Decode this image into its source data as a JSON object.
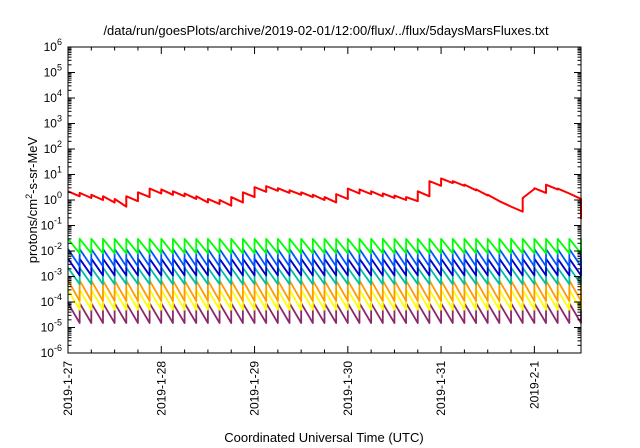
{
  "chart_data": {
    "type": "line",
    "title": "/data/run/goesPlots/archive/2019-02-01/12:00/flux/../flux/5daysMarsFluxes.txt",
    "xlabel": "Coordinated Universal Time (UTC)",
    "ylabel": {
      "prefix": "protons/cm",
      "exponent": "2",
      "suffix": "-s-sr-MeV"
    },
    "y_scale": "log",
    "ylim_exponent": [
      -6,
      6
    ],
    "y_tick_exponents": [
      "-6",
      "-5",
      "-4",
      "-3",
      "-2",
      "-1",
      "0",
      "1",
      "2",
      "3",
      "4",
      "5",
      "6"
    ],
    "y_tick_base": "10",
    "xlim_days": [
      "2019-01-27",
      "2019-02-01 12:00"
    ],
    "x_ticks": [
      "2019-1-27",
      "2019-1-28",
      "2019-1-29",
      "2019-1-30",
      "2019-1-31",
      "2019-2-1"
    ],
    "grid": false,
    "legend": "none",
    "sawtooth_period_hours": 3,
    "series": [
      {
        "color": "#ff0000",
        "points": [
          [
            "2019-01-27 00:00",
            2.2
          ],
          [
            "2019-01-27 03:00",
            1.4
          ],
          [
            "2019-01-27 03:00",
            1.9
          ],
          [
            "2019-01-27 06:00",
            1.2
          ],
          [
            "2019-01-27 06:00",
            1.6
          ],
          [
            "2019-01-27 09:00",
            1.0
          ],
          [
            "2019-01-27 09:00",
            1.4
          ],
          [
            "2019-01-27 12:00",
            0.8
          ],
          [
            "2019-01-27 12:00",
            1.1
          ],
          [
            "2019-01-27 15:00",
            0.55
          ],
          [
            "2019-01-27 15:00",
            1.4
          ],
          [
            "2019-01-27 18:00",
            0.9
          ],
          [
            "2019-01-27 18:00",
            2.0
          ],
          [
            "2019-01-27 21:00",
            1.3
          ],
          [
            "2019-01-27 21:00",
            2.8
          ],
          [
            "2019-01-28 00:00",
            1.8
          ],
          [
            "2019-01-28 00:00",
            2.6
          ],
          [
            "2019-01-28 03:00",
            1.6
          ],
          [
            "2019-01-28 03:00",
            2.2
          ],
          [
            "2019-01-28 06:00",
            1.4
          ],
          [
            "2019-01-28 06:00",
            1.8
          ],
          [
            "2019-01-28 09:00",
            1.1
          ],
          [
            "2019-01-28 09:00",
            1.4
          ],
          [
            "2019-01-28 12:00",
            0.8
          ],
          [
            "2019-01-28 12:00",
            1.1
          ],
          [
            "2019-01-28 15:00",
            0.7
          ],
          [
            "2019-01-28 15:00",
            1.0
          ],
          [
            "2019-01-28 18:00",
            0.6
          ],
          [
            "2019-01-28 18:00",
            1.3
          ],
          [
            "2019-01-28 21:00",
            0.8
          ],
          [
            "2019-01-28 21:00",
            2.0
          ],
          [
            "2019-01-29 00:00",
            1.3
          ],
          [
            "2019-01-29 00:00",
            3.2
          ],
          [
            "2019-01-29 03:00",
            2.1
          ],
          [
            "2019-01-29 03:00",
            3.5
          ],
          [
            "2019-01-29 06:00",
            2.3
          ],
          [
            "2019-01-29 06:00",
            2.9
          ],
          [
            "2019-01-29 09:00",
            1.9
          ],
          [
            "2019-01-29 09:00",
            2.4
          ],
          [
            "2019-01-29 12:00",
            1.6
          ],
          [
            "2019-01-29 12:00",
            2.0
          ],
          [
            "2019-01-29 15:00",
            1.3
          ],
          [
            "2019-01-29 15:00",
            1.6
          ],
          [
            "2019-01-29 18:00",
            1.0
          ],
          [
            "2019-01-29 18:00",
            1.3
          ],
          [
            "2019-01-29 21:00",
            0.8
          ],
          [
            "2019-01-29 21:00",
            1.7
          ],
          [
            "2019-01-30 00:00",
            1.1
          ],
          [
            "2019-01-30 00:00",
            2.8
          ],
          [
            "2019-01-30 03:00",
            1.8
          ],
          [
            "2019-01-30 03:00",
            2.6
          ],
          [
            "2019-01-30 06:00",
            1.7
          ],
          [
            "2019-01-30 06:00",
            2.2
          ],
          [
            "2019-01-30 09:00",
            1.4
          ],
          [
            "2019-01-30 09:00",
            1.8
          ],
          [
            "2019-01-30 12:00",
            1.2
          ],
          [
            "2019-01-30 12:00",
            1.5
          ],
          [
            "2019-01-30 15:00",
            1.0
          ],
          [
            "2019-01-30 15:00",
            1.3
          ],
          [
            "2019-01-30 18:00",
            0.9
          ],
          [
            "2019-01-30 18:00",
            2.2
          ],
          [
            "2019-01-30 21:00",
            1.4
          ],
          [
            "2019-01-30 21:00",
            5.5
          ],
          [
            "2019-01-31 00:00",
            3.6
          ],
          [
            "2019-01-31 00:00",
            7.0
          ],
          [
            "2019-01-31 03:00",
            4.6
          ],
          [
            "2019-01-31 03:00",
            5.5
          ],
          [
            "2019-01-31 06:00",
            3.6
          ],
          [
            "2019-01-31 06:00",
            4.0
          ],
          [
            "2019-01-31 09:00",
            2.4
          ],
          [
            "2019-01-31 09:00",
            2.6
          ],
          [
            "2019-01-31 12:00",
            1.5
          ],
          [
            "2019-01-31 12:00",
            1.6
          ],
          [
            "2019-01-31 15:00",
            0.9
          ],
          [
            "2019-01-31 15:00",
            0.9
          ],
          [
            "2019-01-31 18:00",
            0.55
          ],
          [
            "2019-01-31 18:00",
            0.55
          ],
          [
            "2019-01-31 21:00",
            0.35
          ],
          [
            "2019-01-31 21:00",
            1.2
          ],
          [
            "2019-02-01 00:00",
            2.7
          ],
          [
            "2019-02-01 00:00",
            2.9
          ],
          [
            "2019-02-01 03:00",
            1.9
          ],
          [
            "2019-02-01 03:00",
            4.0
          ],
          [
            "2019-02-01 06:00",
            2.6
          ],
          [
            "2019-02-01 06:00",
            2.8
          ],
          [
            "2019-02-01 09:00",
            1.8
          ],
          [
            "2019-02-01 09:00",
            1.8
          ],
          [
            "2019-02-01 12:00",
            1.1
          ],
          [
            "2019-02-01 12:00",
            1.1
          ],
          [
            "2019-02-01 15:00",
            0.7
          ],
          [
            "2019-02-01 15:00",
            0.7
          ],
          [
            "2019-02-01 18:00",
            0.45
          ],
          [
            "2019-02-01 18:00",
            0.45
          ],
          [
            "2019-02-01 21:00",
            0.28
          ],
          [
            "2019-02-01 21:00",
            0.28
          ],
          [
            "2019-02-02 00:00",
            0.18
          ]
        ]
      },
      {
        "color": "#00ff00",
        "peak": 0.03,
        "trough": 0.008
      },
      {
        "color": "#0055ff",
        "peak": 0.012,
        "trough": 0.0025
      },
      {
        "color": "#0000c8",
        "peak": 0.005,
        "trough": 0.0011
      },
      {
        "color": "#00c0a0",
        "peak": 0.0022,
        "trough": 0.0005
      },
      {
        "color": "#ff9900",
        "peak": 0.0007,
        "trough": 0.00011
      },
      {
        "color": "#ffff00",
        "peak": 0.0003,
        "trough": 5e-05
      },
      {
        "color": "#8b2a6b",
        "peak": 9e-05,
        "trough": 1.5e-05
      }
    ]
  }
}
